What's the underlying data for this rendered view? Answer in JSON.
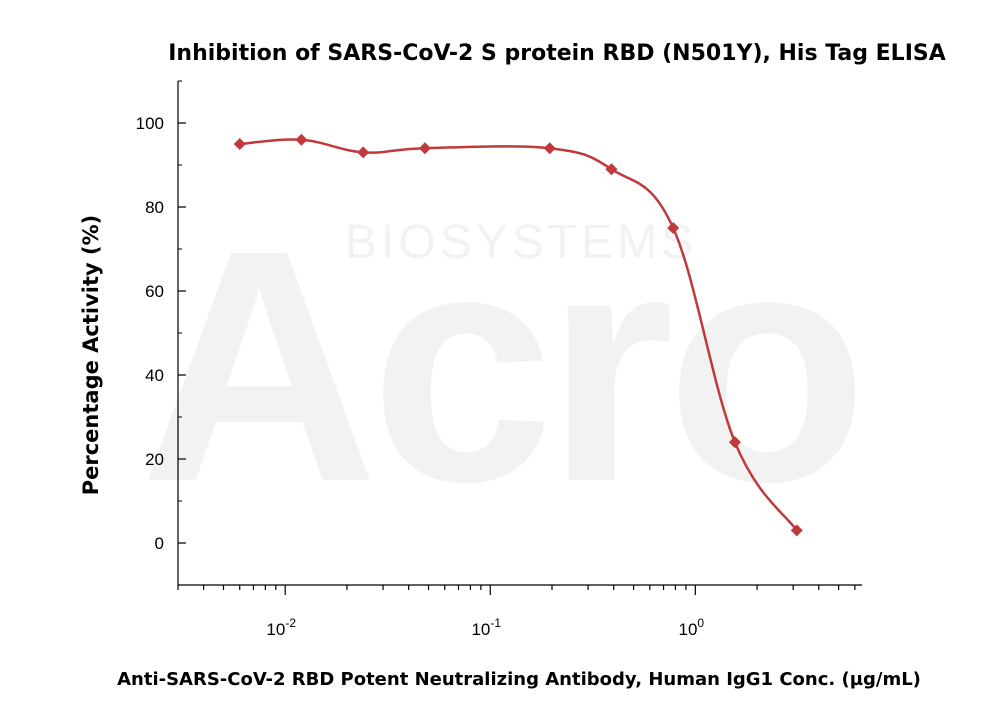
{
  "watermark": {
    "brand": "Acro",
    "sub": "BIOSYSTEMS"
  },
  "chart_data": {
    "type": "scatter",
    "title": "Inhibition of SARS-CoV-2 S protein RBD (N501Y), His Tag ELISA",
    "xlabel": "Anti-SARS-CoV-2 RBD Potent Neutralizing Antibody, Human IgG1 Conc. (µg/mL)",
    "ylabel": "Percentage Activity (%)",
    "x_scale": "log10",
    "xlim": [
      0.003,
      6.5
    ],
    "ylim": [
      -10,
      110
    ],
    "y_ticks": [
      0,
      20,
      40,
      60,
      80,
      100
    ],
    "x_tick_labels": [
      {
        "value": 0.01,
        "base": "10",
        "exp": "-2"
      },
      {
        "value": 0.1,
        "base": "10",
        "exp": "-1"
      },
      {
        "value": 1,
        "base": "10",
        "exp": "0"
      }
    ],
    "grid": false,
    "colors": {
      "series": "#c0393b",
      "axis": "#000000"
    },
    "series": [
      {
        "marker": "diamond",
        "points": [
          {
            "x": 0.006,
            "y": 95
          },
          {
            "x": 0.012,
            "y": 96
          },
          {
            "x": 0.024,
            "y": 93
          },
          {
            "x": 0.048,
            "y": 94
          },
          {
            "x": 0.195,
            "y": 94
          },
          {
            "x": 0.39,
            "y": 89
          },
          {
            "x": 0.78,
            "y": 75
          },
          {
            "x": 1.56,
            "y": 24
          },
          {
            "x": 3.125,
            "y": 3
          }
        ]
      }
    ]
  }
}
